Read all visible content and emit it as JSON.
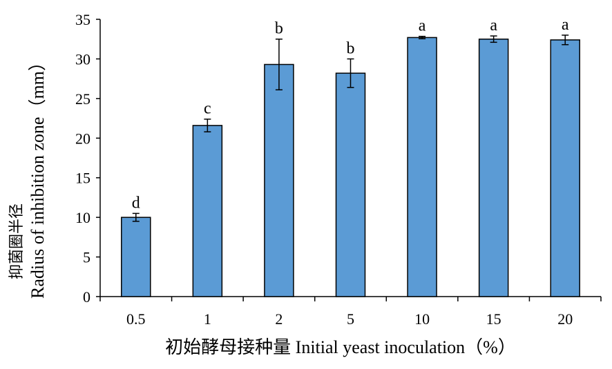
{
  "chart_data": {
    "type": "bar",
    "ylabel_cn": "抑菌圈半径",
    "ylabel_en": "Radius of inhibition zone（mm）",
    "xlabel": "初始酵母接种量 Initial yeast inoculation（%）",
    "categories": [
      "0.5",
      "1",
      "2",
      "5",
      "10",
      "15",
      "20"
    ],
    "values": [
      10.0,
      21.6,
      29.3,
      28.2,
      32.7,
      32.5,
      32.4
    ],
    "errors": [
      0.5,
      0.8,
      3.2,
      1.8,
      0.15,
      0.4,
      0.6
    ],
    "significance": [
      "d",
      "c",
      "b",
      "b",
      "a",
      "a",
      "a"
    ],
    "ylim": [
      0,
      35
    ],
    "yticks": [
      "0",
      "5",
      "10",
      "15",
      "20",
      "25",
      "30",
      "35"
    ],
    "grid": false,
    "bar_color": "#5b9bd5"
  }
}
